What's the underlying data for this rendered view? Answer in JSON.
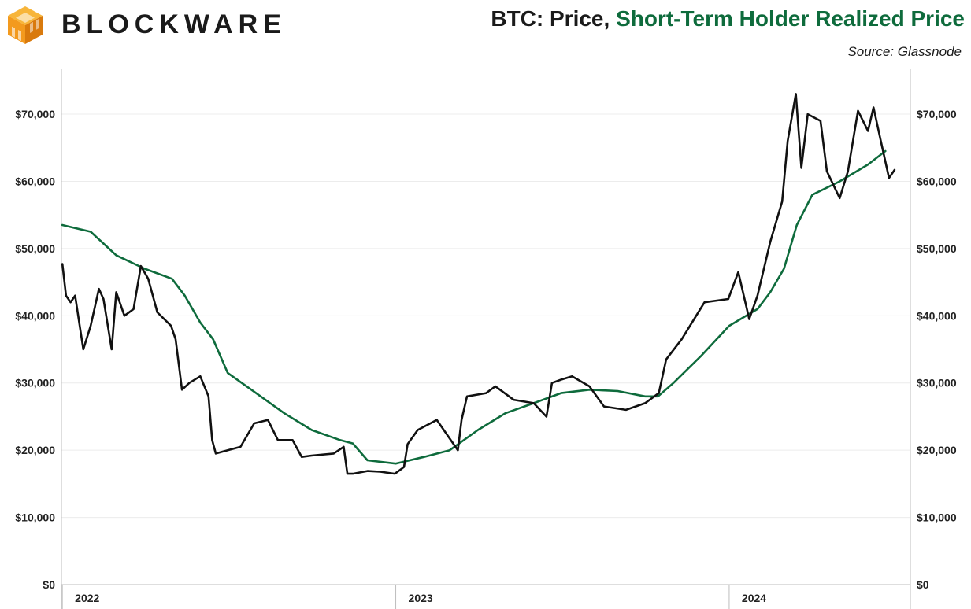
{
  "header": {
    "brand": "BLOCKWARE",
    "title_prefix": "BTC: Price, ",
    "title_series": "Short-Term Holder Realized Price",
    "source": "Source: Glassnode"
  },
  "colors": {
    "price": "#111111",
    "sth_realized": "#0e6b3c",
    "accent": "#f39a1e"
  },
  "icons": {
    "logo": "blockware-cube-logo"
  },
  "chart_data": {
    "type": "line",
    "title": "BTC: Price, Short-Term Holder Realized Price",
    "ylim": [
      0,
      75000
    ],
    "y_ticks": [
      0,
      10000,
      20000,
      30000,
      40000,
      50000,
      60000,
      70000
    ],
    "y_tick_labels": [
      "$0",
      "$10,000",
      "$20,000",
      "$30,000",
      "$40,000",
      "$50,000",
      "$60,000",
      "$70,000"
    ],
    "x_ticks": [
      "2022",
      "2023",
      "2024"
    ],
    "grid": true,
    "series": [
      {
        "name": "Price",
        "x": [
          "2022-01-01",
          "2022-01-05",
          "2022-01-10",
          "2022-01-15",
          "2022-01-20",
          "2022-01-24",
          "2022-02-01",
          "2022-02-10",
          "2022-02-15",
          "2022-02-24",
          "2022-03-01",
          "2022-03-10",
          "2022-03-20",
          "2022-03-28",
          "2022-04-05",
          "2022-04-15",
          "2022-04-30",
          "2022-05-05",
          "2022-05-12",
          "2022-05-20",
          "2022-06-01",
          "2022-06-10",
          "2022-06-14",
          "2022-06-18",
          "2022-07-01",
          "2022-07-15",
          "2022-07-30",
          "2022-08-14",
          "2022-08-25",
          "2022-09-10",
          "2022-09-20",
          "2022-10-01",
          "2022-10-25",
          "2022-11-05",
          "2022-11-09",
          "2022-11-15",
          "2022-12-01",
          "2022-12-15",
          "2022-12-31",
          "2023-01-10",
          "2023-01-14",
          "2023-01-25",
          "2023-02-15",
          "2023-03-10",
          "2023-03-14",
          "2023-03-20",
          "2023-04-10",
          "2023-04-20",
          "2023-05-10",
          "2023-06-01",
          "2023-06-15",
          "2023-06-21",
          "2023-07-01",
          "2023-07-13",
          "2023-08-01",
          "2023-08-17",
          "2023-09-10",
          "2023-10-01",
          "2023-10-16",
          "2023-10-24",
          "2023-11-10",
          "2023-12-05",
          "2023-12-31",
          "2024-01-11",
          "2024-01-23",
          "2024-02-01",
          "2024-02-15",
          "2024-02-28",
          "2024-03-05",
          "2024-03-14",
          "2024-03-20",
          "2024-03-27",
          "2024-04-10",
          "2024-04-17",
          "2024-05-01",
          "2024-05-10",
          "2024-05-21",
          "2024-06-01",
          "2024-06-07",
          "2024-06-15",
          "2024-06-24",
          "2024-06-30"
        ],
        "values": [
          47700,
          43000,
          42000,
          43000,
          38500,
          35000,
          38500,
          44000,
          42500,
          35000,
          43500,
          40000,
          41000,
          47400,
          45500,
          40500,
          38500,
          36500,
          29000,
          30000,
          31000,
          28000,
          21500,
          19500,
          20000,
          20500,
          24000,
          24500,
          21500,
          21500,
          19000,
          19200,
          19500,
          20500,
          16500,
          16500,
          16900,
          16800,
          16500,
          17500,
          20900,
          23000,
          24500,
          20000,
          24500,
          28000,
          28500,
          29500,
          27500,
          27000,
          25000,
          30000,
          30500,
          31000,
          29500,
          26500,
          26000,
          27000,
          28500,
          33500,
          36500,
          42000,
          42500,
          46500,
          39500,
          43000,
          51000,
          57000,
          66000,
          73000,
          62000,
          70000,
          69000,
          61500,
          57500,
          61500,
          70500,
          67500,
          71000,
          66000,
          60500,
          61700
        ]
      },
      {
        "name": "Short-Term Holder Realized Price",
        "x": [
          "2022-01-01",
          "2022-02-01",
          "2022-03-01",
          "2022-04-01",
          "2022-05-01",
          "2022-05-15",
          "2022-06-01",
          "2022-06-15",
          "2022-07-01",
          "2022-08-01",
          "2022-09-01",
          "2022-10-01",
          "2022-11-01",
          "2022-11-15",
          "2022-12-01",
          "2023-01-01",
          "2023-02-01",
          "2023-03-01",
          "2023-04-01",
          "2023-05-01",
          "2023-06-01",
          "2023-07-01",
          "2023-08-01",
          "2023-09-01",
          "2023-10-01",
          "2023-10-15",
          "2023-11-01",
          "2023-12-01",
          "2024-01-01",
          "2024-02-01",
          "2024-02-15",
          "2024-03-01",
          "2024-03-15",
          "2024-04-01",
          "2024-05-01",
          "2024-06-01",
          "2024-06-20"
        ],
        "values": [
          53500,
          52500,
          49000,
          47000,
          45500,
          43000,
          39000,
          36500,
          31500,
          28500,
          25500,
          23000,
          21500,
          21000,
          18500,
          18000,
          19000,
          20000,
          23000,
          25500,
          27000,
          28500,
          29000,
          28800,
          28000,
          28000,
          30000,
          34000,
          38500,
          41000,
          43500,
          47000,
          53500,
          58000,
          60000,
          62500,
          64500
        ]
      }
    ]
  }
}
